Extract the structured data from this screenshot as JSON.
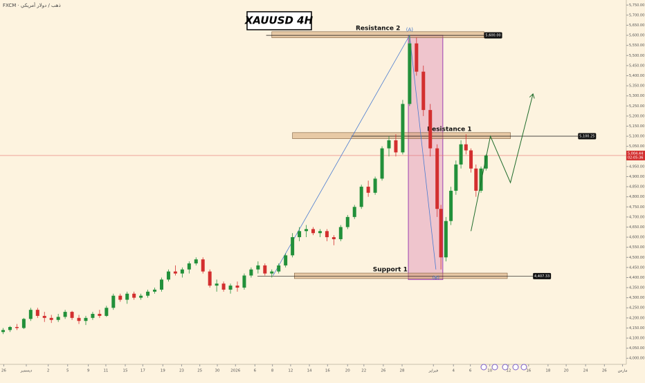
{
  "chart_data": {
    "type": "candlestick",
    "title": "XAUUSD 4H",
    "header": "FXCM · ذهب / دولار أمريكي",
    "xlim": [
      0,
      100
    ],
    "ylim": [
      3970,
      5775
    ],
    "xticks": [
      {
        "value": 0.6,
        "label": "26"
      },
      {
        "value": 4.2,
        "label": "ديسمبر"
      },
      {
        "value": 7.7,
        "label": "2"
      },
      {
        "value": 10.8,
        "label": "5"
      },
      {
        "value": 14.1,
        "label": "9"
      },
      {
        "value": 16.9,
        "label": "11"
      },
      {
        "value": 20.0,
        "label": "15"
      },
      {
        "value": 22.8,
        "label": "17"
      },
      {
        "value": 26.0,
        "label": "19"
      },
      {
        "value": 29.0,
        "label": "23"
      },
      {
        "value": 31.9,
        "label": "25"
      },
      {
        "value": 34.7,
        "label": "30"
      },
      {
        "value": 37.6,
        "label": "2026"
      },
      {
        "value": 40.7,
        "label": "6"
      },
      {
        "value": 43.5,
        "label": "8"
      },
      {
        "value": 46.4,
        "label": "12"
      },
      {
        "value": 49.4,
        "label": "14"
      },
      {
        "value": 52.3,
        "label": "16"
      },
      {
        "value": 55.5,
        "label": "20"
      },
      {
        "value": 58.1,
        "label": "22"
      },
      {
        "value": 61.2,
        "label": "26"
      },
      {
        "value": 64.2,
        "label": "28"
      },
      {
        "value": 69.2,
        "label": "فبراير"
      },
      {
        "value": 72.4,
        "label": "4"
      },
      {
        "value": 75.1,
        "label": "6"
      },
      {
        "value": 78.2,
        "label": "10"
      },
      {
        "value": 81.2,
        "label": "12"
      },
      {
        "value": 84.4,
        "label": "16"
      },
      {
        "value": 87.5,
        "label": "18"
      },
      {
        "value": 90.4,
        "label": "20"
      },
      {
        "value": 93.5,
        "label": "24"
      },
      {
        "value": 96.5,
        "label": "26"
      },
      {
        "value": 99.4,
        "label": "مارس"
      }
    ],
    "yticks": [
      {
        "value": 4000,
        "label": "4,000.00"
      },
      {
        "value": 4050,
        "label": "4,050.00"
      },
      {
        "value": 4100,
        "label": "4,100.00"
      },
      {
        "value": 4150,
        "label": "4,150.00"
      },
      {
        "value": 4200,
        "label": "4,200.00"
      },
      {
        "value": 4250,
        "label": "4,250.00"
      },
      {
        "value": 4300,
        "label": "4,300.00"
      },
      {
        "value": 4350,
        "label": "4,350.00"
      },
      {
        "value": 4400,
        "label": "4,400.00"
      },
      {
        "value": 4450,
        "label": "4,450.00"
      },
      {
        "value": 4500,
        "label": "4,500.00"
      },
      {
        "value": 4550,
        "label": "4,550.00"
      },
      {
        "value": 4600,
        "label": "4,600.00"
      },
      {
        "value": 4650,
        "label": "4,650.00"
      },
      {
        "value": 4700,
        "label": "4,700.00"
      },
      {
        "value": 4750,
        "label": "4,750.00"
      },
      {
        "value": 4800,
        "label": "4,800.00"
      },
      {
        "value": 4850,
        "label": "4,850.00"
      },
      {
        "value": 4900,
        "label": "4,900.00"
      },
      {
        "value": 4950,
        "label": "4,950.00"
      },
      {
        "value": 5000,
        "label": "5,000.00"
      },
      {
        "value": 5050,
        "label": "5,050.00"
      },
      {
        "value": 5100,
        "label": "5,100.00"
      },
      {
        "value": 5150,
        "label": "5,150.00"
      },
      {
        "value": 5200,
        "label": "5,200.00"
      },
      {
        "value": 5250,
        "label": "5,250.00"
      },
      {
        "value": 5300,
        "label": "5,300.00"
      },
      {
        "value": 5350,
        "label": "5,350.00"
      },
      {
        "value": 5400,
        "label": "5,400.00"
      },
      {
        "value": 5450,
        "label": "5,450.00"
      },
      {
        "value": 5500,
        "label": "5,500.00"
      },
      {
        "value": 5550,
        "label": "5,550.00"
      },
      {
        "value": 5600,
        "label": "5,600.00"
      },
      {
        "value": 5650,
        "label": "5,650.00"
      },
      {
        "value": 5700,
        "label": "5,700.00"
      },
      {
        "value": 5750,
        "label": "5,750.00"
      }
    ],
    "up_color": "#22903a",
    "down_color": "#d32f2f",
    "x": [
      0.5,
      1.6,
      2.7,
      3.8,
      4.9,
      6.0,
      7.1,
      8.2,
      9.3,
      10.4,
      11.5,
      12.6,
      13.7,
      14.8,
      15.9,
      17.0,
      18.1,
      19.2,
      20.3,
      21.4,
      22.5,
      23.6,
      24.7,
      25.8,
      26.9,
      28.0,
      29.1,
      30.2,
      31.3,
      32.4,
      33.5,
      34.6,
      35.7,
      36.8,
      37.9,
      39.0,
      40.1,
      41.2,
      42.3,
      43.4,
      44.5,
      45.6,
      46.7,
      47.8,
      48.9,
      50.0,
      51.1,
      52.2,
      53.3,
      54.4,
      55.5,
      56.6,
      57.7,
      58.8,
      59.9,
      61.0,
      62.1,
      63.2,
      64.3,
      65.4,
      66.5,
      67.6,
      68.7,
      69.8,
      70.4,
      71.2,
      72.0,
      72.8,
      73.6,
      74.4,
      75.2,
      76.0,
      76.8,
      77.6
    ],
    "open": [
      4130,
      4140,
      4155,
      4150,
      4195,
      4240,
      4210,
      4200,
      4190,
      4205,
      4230,
      4200,
      4185,
      4200,
      4220,
      4210,
      4250,
      4310,
      4290,
      4320,
      4300,
      4310,
      4330,
      4340,
      4390,
      4430,
      4420,
      4440,
      4470,
      4490,
      4430,
      4360,
      4370,
      4340,
      4360,
      4350,
      4410,
      4440,
      4460,
      4420,
      4430,
      4460,
      4510,
      4600,
      4630,
      4640,
      4620,
      4630,
      4600,
      4590,
      4650,
      4700,
      4750,
      4850,
      4820,
      4890,
      5040,
      5080,
      5020,
      5260,
      5560,
      5420,
      5230,
      5040,
      4740,
      4500,
      4680,
      4830,
      4960,
      5060,
      5030,
      4940,
      4830,
      4940
    ],
    "high": [
      4150,
      4160,
      4170,
      4200,
      4250,
      4250,
      4230,
      4215,
      4220,
      4240,
      4235,
      4215,
      4210,
      4230,
      4240,
      4260,
      4320,
      4320,
      4330,
      4330,
      4320,
      4340,
      4350,
      4400,
      4440,
      4460,
      4450,
      4480,
      4500,
      4500,
      4440,
      4390,
      4380,
      4370,
      4380,
      4420,
      4450,
      4480,
      4470,
      4440,
      4470,
      4520,
      4620,
      4650,
      4660,
      4650,
      4640,
      4640,
      4610,
      4660,
      4710,
      4760,
      4860,
      4880,
      4900,
      5050,
      5100,
      5110,
      5280,
      5600,
      5590,
      5450,
      5260,
      5060,
      4760,
      4700,
      4850,
      4980,
      5080,
      5110,
      5040,
      4960,
      4950,
      5010
    ],
    "low": [
      4120,
      4130,
      4140,
      4145,
      4185,
      4200,
      4180,
      4175,
      4180,
      4195,
      4190,
      4170,
      4165,
      4190,
      4200,
      4205,
      4240,
      4280,
      4270,
      4290,
      4290,
      4300,
      4320,
      4330,
      4380,
      4410,
      4400,
      4420,
      4460,
      4420,
      4350,
      4330,
      4330,
      4320,
      4330,
      4340,
      4400,
      4420,
      4410,
      4400,
      4420,
      4450,
      4500,
      4580,
      4600,
      4610,
      4600,
      4580,
      4560,
      4580,
      4640,
      4690,
      4740,
      4800,
      4810,
      4880,
      5000,
      5000,
      5010,
      5250,
      5400,
      5200,
      5000,
      4700,
      4440,
      4480,
      4660,
      4810,
      4940,
      5010,
      4920,
      4800,
      4820,
      4930
    ],
    "close": [
      4140,
      4155,
      4150,
      4195,
      4240,
      4210,
      4200,
      4190,
      4205,
      4230,
      4200,
      4185,
      4200,
      4220,
      4210,
      4250,
      4310,
      4290,
      4320,
      4300,
      4310,
      4330,
      4340,
      4390,
      4430,
      4420,
      4440,
      4470,
      4490,
      4430,
      4360,
      4370,
      4340,
      4360,
      4350,
      4410,
      4440,
      4460,
      4420,
      4430,
      4460,
      4510,
      4600,
      4630,
      4640,
      4620,
      4630,
      4600,
      4590,
      4650,
      4700,
      4750,
      4850,
      4820,
      4890,
      5040,
      5080,
      5020,
      5260,
      5560,
      5420,
      5230,
      5040,
      4740,
      4500,
      4680,
      4830,
      4960,
      5060,
      5030,
      4940,
      4830,
      4940,
      5004.44
    ],
    "current_price": {
      "value": 5004.44,
      "label": "5,004.44",
      "countdown": "02:05:36"
    },
    "levels": [
      {
        "name": "Resistance 2",
        "value": 5600,
        "label": "5,600.00",
        "zone": [
          5588,
          5618
        ],
        "zone_x": [
          43.4,
          77.3
        ],
        "line_x": [
          42.5,
          77.3
        ]
      },
      {
        "name": "Resistance 1",
        "value": 5100.25,
        "label": "5,100.25",
        "zone": [
          5088,
          5118
        ],
        "zone_x": [
          46.7,
          81.5
        ],
        "line_x": [
          56.1,
          92.3
        ]
      },
      {
        "name": "Support 1",
        "value": 4407.33,
        "label": "4,407.33",
        "zone": [
          4395,
          4422
        ],
        "zone_x": [
          47.0,
          81.0
        ],
        "line_x": [
          41.1,
          85.1
        ]
      }
    ],
    "range_box": {
      "x": [
        65.2,
        70.7
      ],
      "y": [
        4390,
        5600
      ]
    },
    "wave": {
      "x": [
        43.6,
        65.4,
        69.6
      ],
      "y": [
        4410,
        5600,
        4440
      ],
      "labels": [
        "(A)",
        "(B)"
      ]
    },
    "projection": {
      "x": [
        75.2,
        78.3,
        81.5,
        85.1
      ],
      "y": [
        4630,
        5100,
        4870,
        5310
      ]
    }
  }
}
